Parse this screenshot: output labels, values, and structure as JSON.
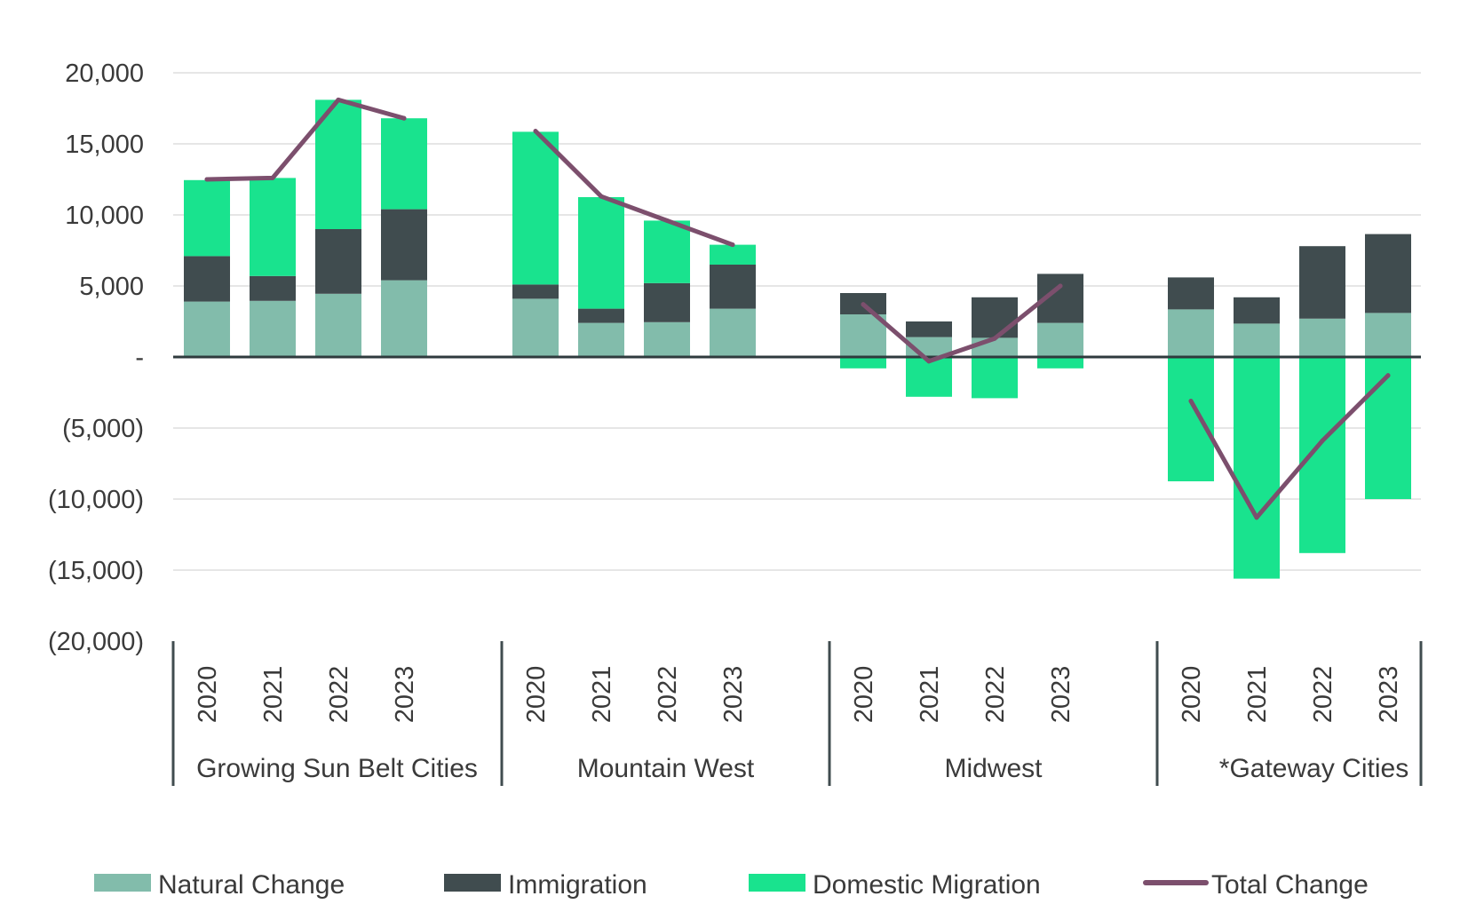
{
  "chart_data": {
    "type": "bar",
    "stacked": true,
    "groups": [
      "Growing Sun Belt Cities",
      "Mountain West",
      "Midwest",
      "*Gateway Cities"
    ],
    "years": [
      "2020",
      "2021",
      "2022",
      "2023"
    ],
    "y_ticks": [
      "20,000",
      "15,000",
      "10,000",
      "5,000",
      "-",
      "(5,000)",
      "(10,000)",
      "(15,000)",
      "(20,000)"
    ],
    "ylim": [
      -20000,
      20000
    ],
    "grid": true,
    "legend_position": "bottom",
    "series": [
      {
        "name": "Natural Change",
        "type": "bar",
        "color": "#82bcab",
        "values": [
          3900,
          3950,
          4450,
          5400,
          4100,
          2400,
          2450,
          3400,
          3000,
          1400,
          1350,
          2400,
          3350,
          2350,
          2700,
          3100
        ]
      },
      {
        "name": "Immigration",
        "type": "bar",
        "color": "#404c4f",
        "values": [
          3200,
          1750,
          4550,
          5000,
          1000,
          1000,
          2750,
          3100,
          1500,
          1100,
          2850,
          3450,
          2250,
          1850,
          5100,
          5550
        ]
      },
      {
        "name": "Domestic Migration",
        "type": "bar",
        "color": "#19e38e",
        "values": [
          5350,
          6900,
          9100,
          6400,
          10750,
          7850,
          4400,
          1400,
          -800,
          -2800,
          -2900,
          -800,
          -8750,
          -15600,
          -13800,
          -10000
        ]
      },
      {
        "name": "Total Change",
        "type": "line",
        "color": "#7c4f6d",
        "values": [
          12500,
          12600,
          18100,
          16800,
          15900,
          11300,
          9600,
          7900,
          3700,
          -300,
          1300,
          5000,
          -3100,
          -11300,
          -5900,
          -1300
        ]
      }
    ]
  }
}
